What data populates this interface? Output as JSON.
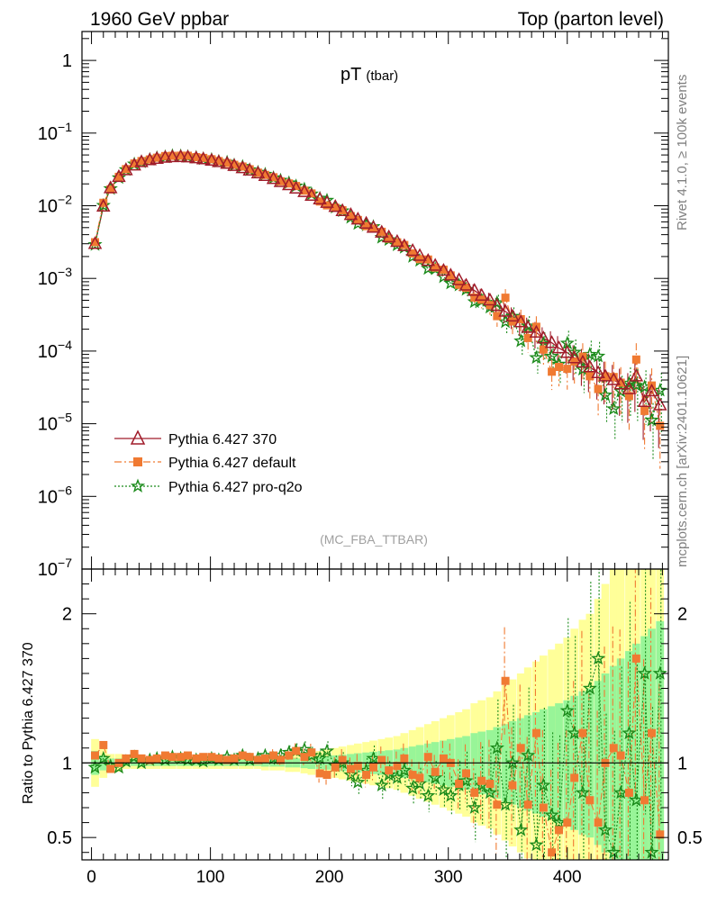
{
  "header": {
    "left": "1960 GeV ppbar",
    "right": "Top (parton level)"
  },
  "side": {
    "rivet": "Rivet 4.1.0, ≥ 100k events",
    "mcplots": "mcplots.cern.ch [arXiv:2401.10621]"
  },
  "chart_data": {
    "type": "line",
    "title": "pT",
    "title_sub": "(tbar)",
    "analysis": "(MC_FBA_TTBAR)",
    "xlim": [
      -8,
      485
    ],
    "xticks": [
      "0",
      "100",
      "200",
      "300",
      "400"
    ],
    "xtick_values": [
      0,
      100,
      200,
      300,
      400
    ],
    "main": {
      "yscale": "log",
      "ylim": [
        1e-07,
        2.5
      ],
      "ytick_labels": [
        {
          "value": 1,
          "base": "1",
          "exp": ""
        },
        {
          "value": 0.1,
          "base": "10",
          "exp": "−1"
        },
        {
          "value": 0.01,
          "base": "10",
          "exp": "−2"
        },
        {
          "value": 0.001,
          "base": "10",
          "exp": "−3"
        },
        {
          "value": 0.0001,
          "base": "10",
          "exp": "−4"
        },
        {
          "value": 1e-05,
          "base": "10",
          "exp": "−5"
        },
        {
          "value": 1e-06,
          "base": "10",
          "exp": "−6"
        },
        {
          "value": 1e-07,
          "base": "10",
          "exp": "−7"
        }
      ]
    },
    "ratio": {
      "ylabel": "Ratio to Pythia 6.427 370",
      "ylim": [
        0.35,
        2.3
      ],
      "ytick_labels": [
        "2",
        "1",
        "0.5"
      ],
      "ytick_values": [
        2,
        1,
        0.5
      ]
    },
    "legend": {
      "position": "lower-left",
      "entries": [
        "Pythia 6.427 370",
        "Pythia 6.427 default",
        "Pythia 6.427 pro-q2o"
      ]
    },
    "series": [
      {
        "name": "Pythia 6.427 370",
        "color": "#a01c2a",
        "marker": "triangle",
        "x": [
          3,
          10,
          16,
          23,
          29,
          36,
          42,
          49,
          55,
          62,
          68,
          75,
          81,
          88,
          94,
          101,
          107,
          114,
          120,
          127,
          133,
          140,
          146,
          153,
          159,
          166,
          172,
          179,
          185,
          192,
          198,
          205,
          211,
          218,
          224,
          231,
          237,
          244,
          250,
          257,
          263,
          270,
          276,
          283,
          289,
          296,
          302,
          309,
          315,
          322,
          328,
          335,
          341,
          348,
          354,
          361,
          367,
          374,
          380,
          387,
          393,
          400,
          406,
          413,
          419,
          426,
          432,
          439,
          445,
          452,
          458,
          465,
          471,
          478
        ],
        "values": [
          0.003,
          0.0098,
          0.0175,
          0.025,
          0.031,
          0.036,
          0.04,
          0.0425,
          0.0445,
          0.046,
          0.0468,
          0.047,
          0.0465,
          0.0453,
          0.0438,
          0.042,
          0.04,
          0.038,
          0.0355,
          0.033,
          0.0306,
          0.028,
          0.0258,
          0.0235,
          0.0213,
          0.0193,
          0.0173,
          0.0155,
          0.0138,
          0.0123,
          0.011,
          0.0097,
          0.0085,
          0.0075,
          0.0065,
          0.0057,
          0.005,
          0.0043,
          0.0037,
          0.0032,
          0.0028,
          0.0024,
          0.00205,
          0.00175,
          0.0015,
          0.00128,
          0.0011,
          0.00095,
          0.0008,
          0.00068,
          0.00058,
          0.0005,
          0.00042,
          0.00035,
          0.0003,
          0.00025,
          0.00021,
          0.00018,
          0.00015,
          0.00013,
          0.00011,
          9.5e-05,
          8e-05,
          7e-05,
          6e-05,
          5e-05,
          4.5e-05,
          4e-05,
          3.5e-05,
          3e-05,
          4.5e-05,
          2e-05,
          2.8e-05,
          1.8e-05
        ],
        "ratio": [
          1,
          1,
          1,
          1,
          1,
          1,
          1,
          1,
          1,
          1,
          1,
          1,
          1,
          1,
          1,
          1,
          1,
          1,
          1,
          1,
          1,
          1,
          1,
          1,
          1,
          1,
          1,
          1,
          1,
          1,
          1,
          1,
          1,
          1,
          1,
          1,
          1,
          1,
          1,
          1,
          1,
          1,
          1,
          1,
          1,
          1,
          1,
          1,
          1,
          1,
          1,
          1,
          1,
          1,
          1,
          1,
          1,
          1,
          1,
          1,
          1,
          1,
          1,
          1,
          1,
          1,
          1,
          1,
          1,
          1,
          1,
          1,
          1,
          1
        ],
        "band_rel": [
          0.08,
          0.05,
          0.03,
          0.03,
          0.02,
          0.02,
          0.02,
          0.02,
          0.02,
          0.02,
          0.02,
          0.02,
          0.02,
          0.02,
          0.02,
          0.02,
          0.02,
          0.02,
          0.02,
          0.02,
          0.02,
          0.02,
          0.025,
          0.025,
          0.025,
          0.03,
          0.03,
          0.035,
          0.04,
          0.04,
          0.045,
          0.05,
          0.055,
          0.06,
          0.065,
          0.07,
          0.075,
          0.08,
          0.085,
          0.09,
          0.1,
          0.11,
          0.12,
          0.13,
          0.14,
          0.15,
          0.16,
          0.17,
          0.18,
          0.2,
          0.21,
          0.22,
          0.24,
          0.26,
          0.28,
          0.3,
          0.32,
          0.34,
          0.36,
          0.38,
          0.4,
          0.42,
          0.45,
          0.48,
          0.5,
          0.55,
          0.6,
          0.65,
          0.7,
          0.75,
          0.8,
          0.85,
          0.9,
          0.95
        ]
      },
      {
        "name": "Pythia 6.427 default",
        "color": "#f07a32",
        "marker": "square",
        "x": [
          3,
          10,
          16,
          23,
          29,
          36,
          42,
          49,
          55,
          62,
          68,
          75,
          81,
          88,
          94,
          101,
          107,
          114,
          120,
          127,
          133,
          140,
          146,
          153,
          159,
          166,
          172,
          179,
          185,
          192,
          198,
          205,
          211,
          218,
          224,
          231,
          237,
          244,
          250,
          257,
          263,
          270,
          276,
          283,
          289,
          296,
          302,
          309,
          315,
          322,
          328,
          335,
          341,
          348,
          354,
          361,
          367,
          374,
          380,
          387,
          393,
          400,
          406,
          413,
          419,
          426,
          432,
          439,
          445,
          452,
          458,
          465,
          471,
          478
        ],
        "ratio": [
          1.05,
          1.12,
          0.96,
          1.0,
          1.03,
          1.06,
          1.03,
          1.02,
          1.03,
          1.05,
          1.04,
          1.04,
          1.05,
          1.03,
          1.04,
          1.04,
          1.03,
          1.02,
          1.03,
          1.05,
          1.04,
          1.02,
          1.03,
          1.05,
          1.02,
          1.05,
          1.08,
          1.04,
          1.07,
          0.93,
          0.92,
          0.97,
          1.02,
          0.96,
          0.98,
          0.92,
          0.97,
          1.02,
          0.95,
          0.98,
          1.03,
          0.92,
          0.9,
          1.04,
          0.94,
          1.03,
          1.0,
          0.86,
          0.93,
          0.8,
          0.88,
          0.86,
          0.72,
          1.55,
          0.85,
          1.1,
          0.72,
          1.2,
          0.7,
          0.4,
          0.55,
          0.6,
          0.9,
          1.2,
          0.75,
          0.6,
          1.0,
          1.1,
          1.05,
          0.8,
          1.7,
          0.75,
          1.2,
          0.52
        ]
      },
      {
        "name": "Pythia 6.427 pro-q2o",
        "color": "#1a8a1a",
        "marker": "star",
        "x": [
          3,
          10,
          16,
          23,
          29,
          36,
          42,
          49,
          55,
          62,
          68,
          75,
          81,
          88,
          94,
          101,
          107,
          114,
          120,
          127,
          133,
          140,
          146,
          153,
          159,
          166,
          172,
          179,
          185,
          192,
          198,
          205,
          211,
          218,
          224,
          231,
          237,
          244,
          250,
          257,
          263,
          270,
          276,
          283,
          289,
          296,
          302,
          309,
          315,
          322,
          328,
          335,
          341,
          348,
          354,
          361,
          367,
          374,
          380,
          387,
          393,
          400,
          406,
          413,
          419,
          426,
          432,
          439,
          445,
          452,
          458,
          465,
          471,
          478
        ],
        "ratio": [
          0.97,
          1.03,
          0.98,
          0.97,
          1.01,
          1.04,
          1.0,
          1.02,
          1.03,
          1.02,
          1.04,
          1.03,
          1.02,
          1.02,
          1.01,
          1.03,
          1.02,
          1.04,
          1.02,
          1.05,
          1.02,
          1.03,
          1.05,
          1.03,
          1.05,
          1.07,
          1.08,
          1.09,
          1.05,
          1.03,
          1.08,
          0.98,
          1.0,
          0.92,
          0.87,
          0.95,
          1.03,
          0.85,
          0.92,
          0.9,
          0.95,
          0.83,
          0.86,
          0.78,
          0.9,
          0.82,
          0.78,
          0.85,
          0.88,
          0.7,
          0.85,
          0.8,
          1.1,
          0.72,
          1.0,
          0.55,
          1.05,
          0.45,
          0.85,
          0.65,
          0.6,
          1.35,
          1.2,
          0.8,
          1.5,
          1.7,
          0.55,
          0.4,
          0.8,
          1.2,
          0.75,
          1.6,
          0.4,
          1.6
        ]
      }
    ]
  }
}
